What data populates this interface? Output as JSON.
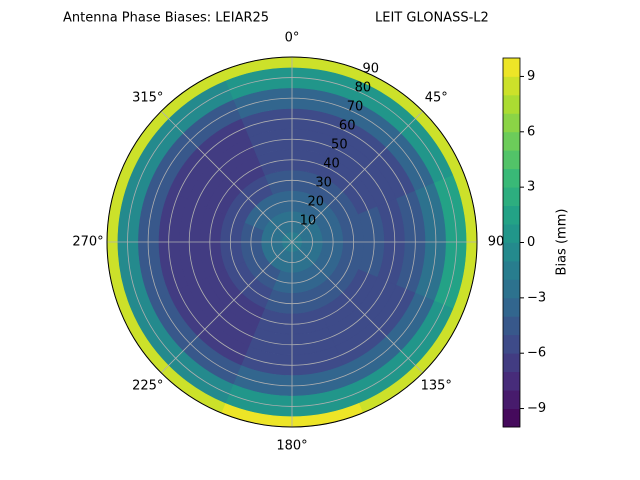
{
  "chart_data": {
    "type": "polar-contour",
    "title": "Antenna Phase Biases: LEIAR25",
    "subtitle": "LEIT GLONASS-L2",
    "azimuths": [
      0,
      45,
      90,
      135,
      180,
      225,
      270,
      315
    ],
    "zenith": [
      0,
      10,
      20,
      30,
      40,
      50,
      60,
      70,
      80,
      90
    ],
    "values": [
      [
        -2,
        -2,
        -2,
        -2,
        -2,
        -2,
        -2,
        -2
      ],
      [
        -3,
        -3,
        -3,
        -3,
        -3,
        -3,
        -3,
        -3
      ],
      [
        -4,
        -4,
        -4,
        -4,
        -4,
        -5,
        -5,
        -4
      ],
      [
        -5,
        -5,
        -5,
        -5,
        -5,
        -6,
        -6,
        -6
      ],
      [
        -6,
        -6,
        -5,
        -6,
        -6,
        -7,
        -7,
        -7
      ],
      [
        -6,
        -6,
        -6,
        -6,
        -6,
        -7,
        -7,
        -7
      ],
      [
        -6,
        -6,
        -5,
        -6,
        -6,
        -7,
        -7,
        -7
      ],
      [
        -4,
        -4,
        -3,
        -4,
        -4,
        -5,
        -5,
        -5
      ],
      [
        0,
        0,
        1,
        0,
        0,
        -1,
        -1,
        -1
      ],
      [
        8,
        8,
        8,
        8,
        9,
        8,
        8,
        8
      ]
    ],
    "rlim": [
      0,
      90
    ],
    "rticks": [
      10,
      20,
      30,
      40,
      50,
      60,
      70,
      80,
      90
    ],
    "thetaticks": [
      {
        "value": 0,
        "label": "0°"
      },
      {
        "value": 45,
        "label": "45°"
      },
      90,
      {
        "value": 135,
        "label": "135°"
      },
      {
        "value": 180,
        "label": "180°"
      },
      {
        "value": 225,
        "label": "225°"
      },
      {
        "value": 270,
        "label": "270°"
      },
      {
        "value": 315,
        "label": "315°"
      }
    ],
    "grid": true,
    "colormap": "viridis",
    "clim": [
      -10,
      10
    ],
    "levels": [
      -10,
      -9,
      -8,
      -7,
      -6,
      -5,
      -4,
      -3,
      -2,
      -1,
      0,
      1,
      2,
      3,
      4,
      5,
      6,
      7,
      8,
      9,
      10
    ],
    "colorbar_label": "Bias (mm)",
    "colorbar_ticks": [
      {
        "value": -9,
        "label": "−9"
      },
      {
        "value": -6,
        "label": "−6"
      },
      {
        "value": -3,
        "label": "−3"
      },
      0,
      3,
      6,
      9
    ]
  }
}
